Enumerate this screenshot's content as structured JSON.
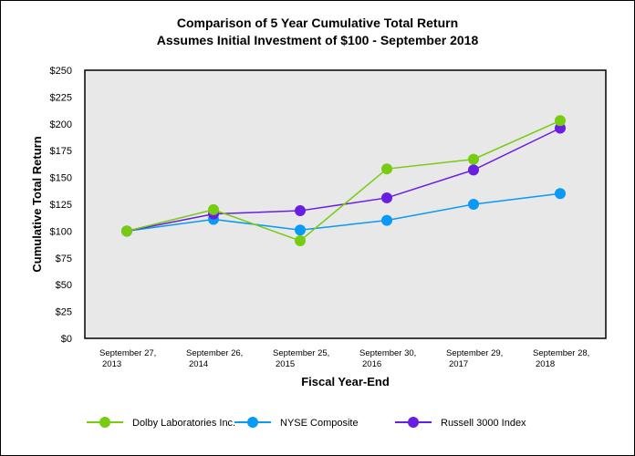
{
  "chart_data": {
    "type": "line",
    "title": "Comparison of 5 Year Cumulative Total Return",
    "subtitle": "Assumes Initial Investment of $100 - September 2018",
    "xlabel": "Fiscal Year-End",
    "ylabel": "Cumulative Total Return",
    "categories": [
      [
        "September 27,",
        "2013"
      ],
      [
        "September 26,",
        "2014"
      ],
      [
        "September 25,",
        "2015"
      ],
      [
        "September 30,",
        "2016"
      ],
      [
        "September 29,",
        "2017"
      ],
      [
        "September 28,",
        "2018"
      ]
    ],
    "ylim": [
      0,
      250
    ],
    "yticks": [
      0,
      25,
      50,
      75,
      100,
      125,
      150,
      175,
      200,
      225,
      250
    ],
    "ytick_labels": [
      "$0",
      "$25",
      "$50",
      "$75",
      "$100",
      "$125",
      "$150",
      "$175",
      "$200",
      "$225",
      "$250"
    ],
    "grid": false,
    "plot_background": "#e8e8e8",
    "legend_position": "bottom",
    "series": [
      {
        "name": "Dolby Laboratories Inc.",
        "color": "#77cc11",
        "values": [
          100,
          120,
          91,
          158,
          167,
          203
        ]
      },
      {
        "name": "NYSE Composite",
        "color": "#0a99f5",
        "values": [
          100,
          111,
          101,
          110,
          125,
          135
        ]
      },
      {
        "name": "Russell 3000 Index",
        "color": "#6a1ee0",
        "values": [
          100,
          116,
          119,
          131,
          157,
          196
        ]
      }
    ]
  }
}
